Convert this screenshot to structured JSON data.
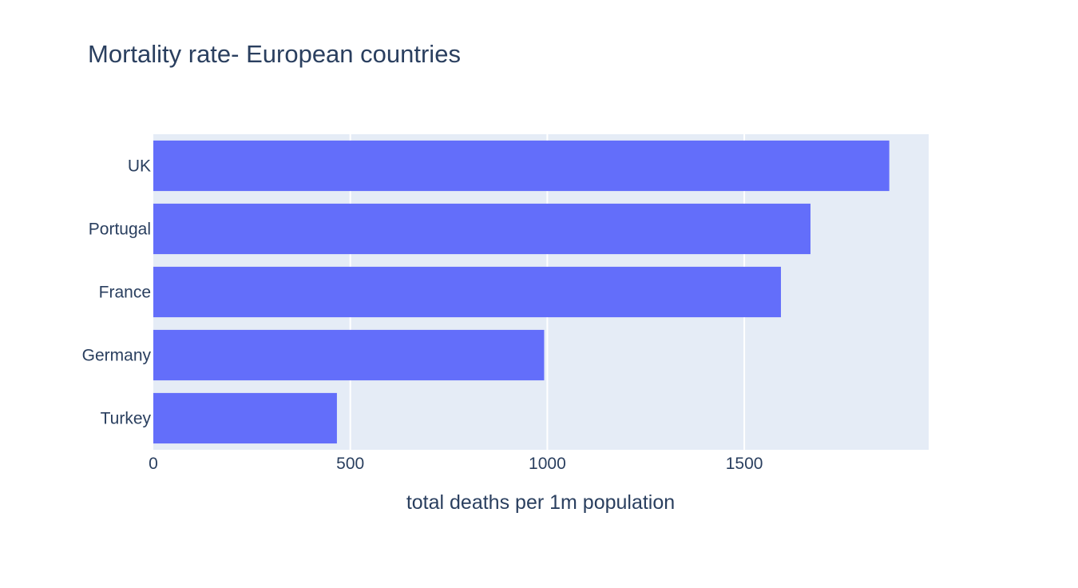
{
  "chart_data": {
    "type": "bar",
    "orientation": "horizontal",
    "title": "Mortality rate- European countries",
    "xlabel": "total deaths per 1m population",
    "ylabel": "",
    "categories": [
      "UK",
      "Portugal",
      "France",
      "Germany",
      "Turkey"
    ],
    "values": [
      1868,
      1668,
      1593,
      992,
      466
    ],
    "xlim": [
      0,
      1968
    ],
    "xticks": [
      0,
      500,
      1000,
      1500
    ],
    "grid": true,
    "legend": "none",
    "colors": {
      "bar": "#636efa",
      "plot_background": "#e5ecf6",
      "grid": "#ffffff",
      "text": "#2a3f5f"
    }
  }
}
